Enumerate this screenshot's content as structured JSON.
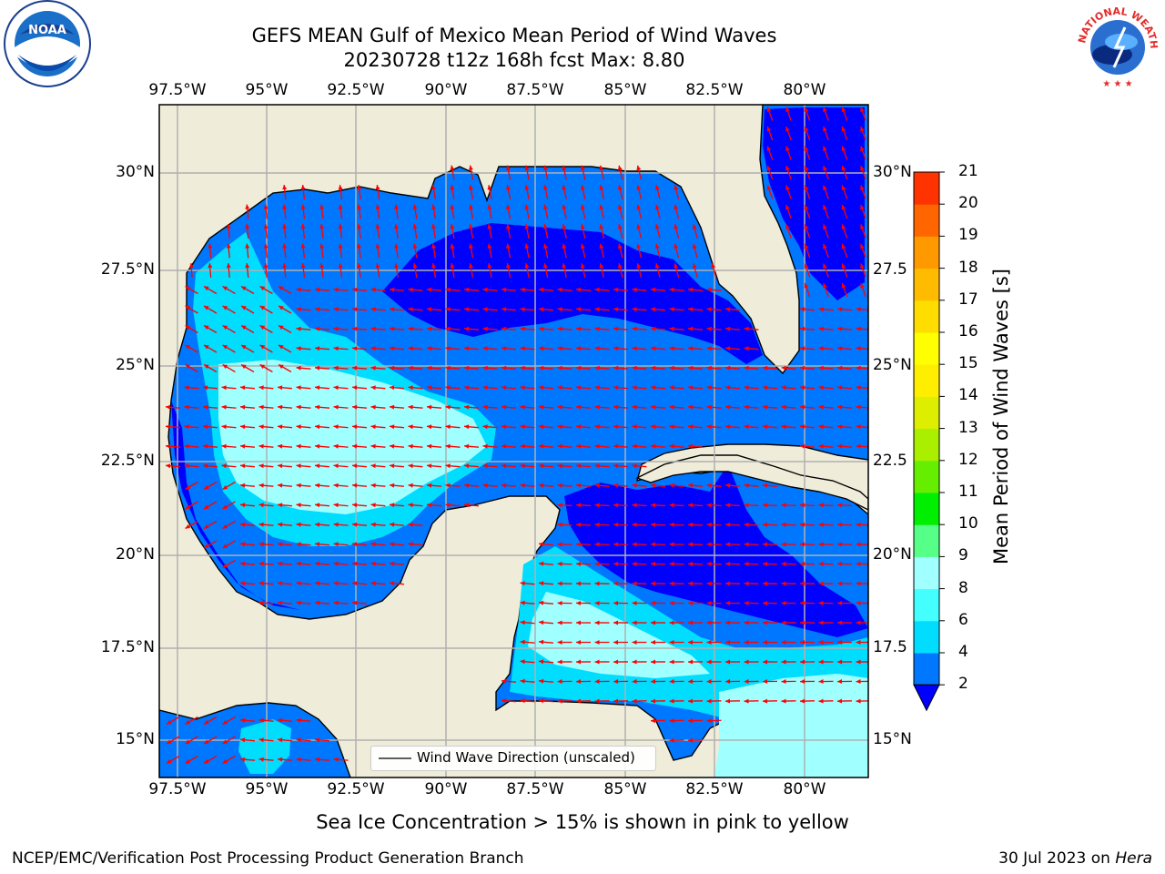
{
  "title": {
    "line1": "GEFS MEAN Gulf of Mexico Mean Period of Wind Waves",
    "line2": "20230728 t12z 168h fcst   Max: 8.80"
  },
  "map": {
    "lon_labels": [
      "97.5°W",
      "95°W",
      "92.5°W",
      "90°W",
      "87.5°W",
      "85°W",
      "82.5°W",
      "80°W"
    ],
    "lat_labels_left": [
      "30°N",
      "27.5°N",
      "25°N",
      "22.5°N",
      "20°N",
      "17.5°N",
      "15°N"
    ],
    "lat_labels_right": [
      "30°N",
      "27.5",
      "25°N",
      "22.5",
      "20°N",
      "17.5",
      "15°N"
    ],
    "legend_label": "Wind Wave Direction (unscaled)",
    "colors": {
      "land": "#efedda",
      "coast": "#000000",
      "grid": "#b0b0b0",
      "arrow": "#ff0000"
    }
  },
  "colorbar": {
    "label": "Mean Period of Wind Waves [s]",
    "ticks": [
      "2",
      "4",
      "6",
      "8",
      "9",
      "10",
      "11",
      "12",
      "13",
      "14",
      "15",
      "16",
      "17",
      "18",
      "19",
      "20",
      "21"
    ],
    "colors": [
      "#0077ff",
      "#00ddff",
      "#44ffff",
      "#a0ffff",
      "#55ff88",
      "#00ee00",
      "#66ee00",
      "#aaee00",
      "#ddee00",
      "#ffee00",
      "#ffff00",
      "#ffdd00",
      "#ffbb00",
      "#ff9900",
      "#ff6600",
      "#ff3300"
    ],
    "extend_color": "#0000ff"
  },
  "footer": {
    "note": "Sea Ice Concentration > 15% is shown in pink to yellow",
    "left": "NCEP/EMC/Verification Post Processing Product Generation Branch",
    "right_prefix": "30 Jul 2023 on ",
    "right_host": "Hera"
  },
  "logos": {
    "noaa": "NOAA",
    "nws": "NATIONAL WEATHER SERVICE"
  }
}
